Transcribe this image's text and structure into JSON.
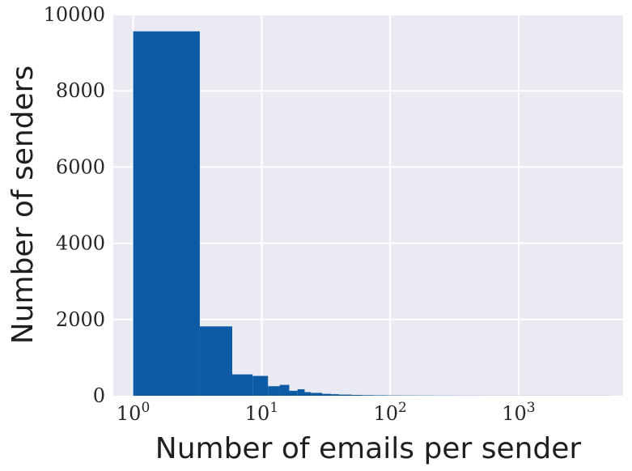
{
  "chart_data": {
    "type": "bar",
    "xlabel": "Number of emails per sender",
    "ylabel": "Number of senders",
    "x_scale": "log",
    "xlim": [
      0.7,
      6500
    ],
    "ylim": [
      0,
      10000
    ],
    "grid": true,
    "colors": {
      "bar": "#0d5aa5",
      "background": "#eaeaf2",
      "grid": "#ffffff"
    },
    "y_ticks": [
      {
        "value": 0,
        "label": "0"
      },
      {
        "value": 2000,
        "label": "2000"
      },
      {
        "value": 4000,
        "label": "4000"
      },
      {
        "value": 6000,
        "label": "6000"
      },
      {
        "value": 8000,
        "label": "8000"
      },
      {
        "value": 10000,
        "label": "10000"
      }
    ],
    "x_ticks": [
      {
        "value": 1,
        "base": "10",
        "exp": "0"
      },
      {
        "value": 10,
        "base": "10",
        "exp": "1"
      },
      {
        "value": 100,
        "base": "10",
        "exp": "2"
      },
      {
        "value": 1000,
        "base": "10",
        "exp": "3"
      }
    ],
    "bins": [
      {
        "x0": 1,
        "x1": 3.3,
        "count": 9560
      },
      {
        "x0": 3.3,
        "x1": 5.9,
        "count": 1820
      },
      {
        "x0": 5.9,
        "x1": 8.5,
        "count": 560
      },
      {
        "x0": 8.5,
        "x1": 11.2,
        "count": 520
      },
      {
        "x0": 11.2,
        "x1": 13.8,
        "count": 250
      },
      {
        "x0": 13.8,
        "x1": 16.4,
        "count": 285
      },
      {
        "x0": 16.4,
        "x1": 19,
        "count": 130
      },
      {
        "x0": 19,
        "x1": 21.6,
        "count": 170
      },
      {
        "x0": 21.6,
        "x1": 24.2,
        "count": 95
      },
      {
        "x0": 24.2,
        "x1": 29.5,
        "count": 75
      },
      {
        "x0": 29.5,
        "x1": 34.7,
        "count": 50
      },
      {
        "x0": 34.7,
        "x1": 40,
        "count": 40
      },
      {
        "x0": 40,
        "x1": 50,
        "count": 30
      },
      {
        "x0": 50,
        "x1": 60,
        "count": 22
      },
      {
        "x0": 60,
        "x1": 75,
        "count": 16
      },
      {
        "x0": 75,
        "x1": 95,
        "count": 12
      },
      {
        "x0": 95,
        "x1": 120,
        "count": 9
      },
      {
        "x0": 120,
        "x1": 160,
        "count": 7
      },
      {
        "x0": 160,
        "x1": 220,
        "count": 5
      },
      {
        "x0": 220,
        "x1": 320,
        "count": 4
      },
      {
        "x0": 320,
        "x1": 500,
        "count": 3
      },
      {
        "x0": 500,
        "x1": 900,
        "count": 2
      },
      {
        "x0": 900,
        "x1": 1800,
        "count": 2
      },
      {
        "x0": 1800,
        "x1": 5200,
        "count": 2
      }
    ]
  }
}
